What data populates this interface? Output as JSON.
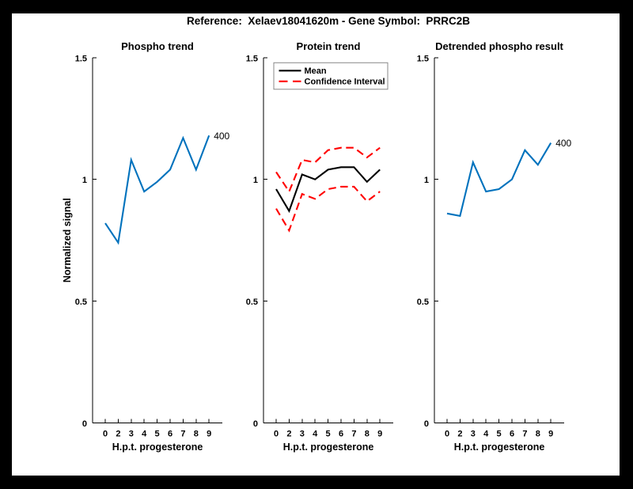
{
  "figure_title": "Reference:  Xelaev18041620m - Gene Symbol:  PRRC2B",
  "colors": {
    "blue": "#0072BD",
    "red": "#FF0000",
    "black": "#000000",
    "page_background": "#000000",
    "canvas_background": "#FFFFFF",
    "axis": "#000000",
    "legend_border": "#888888"
  },
  "chart_data": [
    {
      "type": "line",
      "title": "Phospho trend",
      "xlabel": "H.p.t. progesterone",
      "ylabel": "Normalized signal",
      "categories": [
        "0",
        "2",
        "3",
        "4",
        "5",
        "6",
        "7",
        "8",
        "9"
      ],
      "ylim": [
        0,
        1.5
      ],
      "yticks": [
        0,
        0.5,
        1,
        1.5
      ],
      "ytick_labels": [
        "0",
        "0.5",
        "1",
        "1.5"
      ],
      "grid": false,
      "series": [
        {
          "name": "phospho-trend",
          "color": "#0072BD",
          "style": "solid",
          "values": [
            0.82,
            0.74,
            1.08,
            0.95,
            0.99,
            1.04,
            1.17,
            1.04,
            1.18
          ],
          "end_label": "400"
        }
      ]
    },
    {
      "type": "line",
      "title": "Protein trend",
      "xlabel": "H.p.t. progesterone",
      "ylabel": "",
      "categories": [
        "0",
        "2",
        "3",
        "4",
        "5",
        "6",
        "7",
        "8",
        "9"
      ],
      "ylim": [
        0,
        1.5
      ],
      "yticks": [
        0,
        0.5,
        1,
        1.5
      ],
      "ytick_labels": [
        "0",
        "0.5",
        "1",
        "1.5"
      ],
      "grid": false,
      "legend_position": "upper-left",
      "legend": [
        {
          "label": "Mean",
          "color": "#000000",
          "style": "solid"
        },
        {
          "label": "Confidence Interval",
          "color": "#FF0000",
          "style": "dashed"
        }
      ],
      "series": [
        {
          "name": "ci-upper",
          "color": "#FF0000",
          "style": "dashed",
          "values": [
            1.03,
            0.95,
            1.08,
            1.07,
            1.12,
            1.13,
            1.13,
            1.09,
            1.13
          ]
        },
        {
          "name": "ci-lower",
          "color": "#FF0000",
          "style": "dashed",
          "values": [
            0.88,
            0.79,
            0.94,
            0.92,
            0.96,
            0.97,
            0.97,
            0.91,
            0.95
          ]
        },
        {
          "name": "mean",
          "color": "#000000",
          "style": "solid",
          "values": [
            0.96,
            0.87,
            1.02,
            1.0,
            1.04,
            1.05,
            1.05,
            0.99,
            1.04
          ]
        }
      ]
    },
    {
      "type": "line",
      "title": "Detrended phospho result",
      "xlabel": "H.p.t. progesterone",
      "ylabel": "",
      "categories": [
        "0",
        "2",
        "3",
        "4",
        "5",
        "6",
        "7",
        "8",
        "9"
      ],
      "ylim": [
        0,
        1.5
      ],
      "yticks": [
        0,
        0.5,
        1,
        1.5
      ],
      "ytick_labels": [
        "0",
        "0.5",
        "1",
        "1.5"
      ],
      "grid": false,
      "series": [
        {
          "name": "detrended-phospho",
          "color": "#0072BD",
          "style": "solid",
          "values": [
            0.86,
            0.85,
            1.07,
            0.95,
            0.96,
            1.0,
            1.12,
            1.06,
            1.15
          ],
          "end_label": "400"
        }
      ]
    }
  ]
}
